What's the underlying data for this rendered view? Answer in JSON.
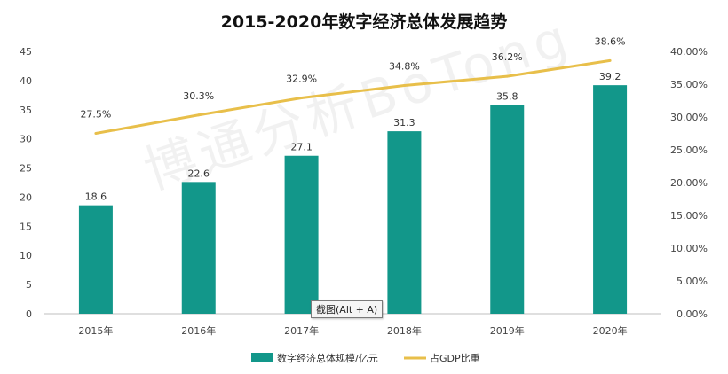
{
  "colors": {
    "bar": "#12978a",
    "line": "#e8bf4a",
    "axis_text": "#444444",
    "grid": "#d9d9d9"
  },
  "watermark": "博通分析BoTong",
  "tooltip": {
    "label": "截图(Alt + A)"
  },
  "chart_data": {
    "type": "bar",
    "title": "2015-2020年数字经济总体发展趋势",
    "categories": [
      "2015年",
      "2016年",
      "2017年",
      "2018年",
      "2019年",
      "2020年"
    ],
    "series": [
      {
        "name": "数字经济总体规模/亿元",
        "type": "bar",
        "axis": "left",
        "values": [
          18.6,
          22.6,
          27.1,
          31.3,
          35.8,
          39.2
        ],
        "labels": [
          "18.6",
          "22.6",
          "27.1",
          "31.3",
          "35.8",
          "39.2"
        ]
      },
      {
        "name": "占GDP比重",
        "type": "line",
        "axis": "right",
        "values": [
          27.5,
          30.3,
          32.9,
          34.8,
          36.2,
          38.6
        ],
        "labels": [
          "27.5%",
          "30.3%",
          "32.9%",
          "34.8%",
          "36.2%",
          "38.6%"
        ]
      }
    ],
    "y_left": {
      "ylim": [
        0,
        45
      ],
      "ticks": [
        "0",
        "5",
        "10",
        "15",
        "20",
        "25",
        "30",
        "35",
        "40",
        "45"
      ]
    },
    "y_right": {
      "ylim": [
        0,
        40
      ],
      "ticks": [
        "0.00%",
        "5.00%",
        "10.00%",
        "15.00%",
        "20.00%",
        "25.00%",
        "30.00%",
        "35.00%",
        "40.00%"
      ]
    },
    "grid": false,
    "legend": "bottom"
  }
}
